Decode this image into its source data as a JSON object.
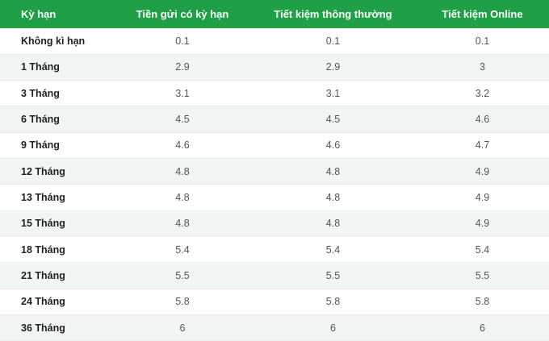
{
  "table": {
    "headers": [
      "Kỳ hạn",
      "Tiền gửi có kỳ hạn",
      "Tiết kiệm thông thường",
      "Tiết kiệm Online"
    ],
    "rows": [
      [
        "Không kì hạn",
        "0.1",
        "0.1",
        "0.1"
      ],
      [
        "1 Tháng",
        "2.9",
        "2.9",
        "3"
      ],
      [
        "3 Tháng",
        "3.1",
        "3.1",
        "3.2"
      ],
      [
        "6 Tháng",
        "4.5",
        "4.5",
        "4.6"
      ],
      [
        "9 Tháng",
        "4.6",
        "4.6",
        "4.7"
      ],
      [
        "12 Tháng",
        "4.8",
        "4.8",
        "4.9"
      ],
      [
        "13 Tháng",
        "4.8",
        "4.8",
        "4.9"
      ],
      [
        "15 Tháng",
        "4.8",
        "4.8",
        "4.9"
      ],
      [
        "18 Tháng",
        "5.4",
        "5.4",
        "5.4"
      ],
      [
        "21 Tháng",
        "5.5",
        "5.5",
        "5.5"
      ],
      [
        "24 Tháng",
        "5.8",
        "5.8",
        "5.8"
      ],
      [
        "36 Tháng",
        "6",
        "6",
        "6"
      ]
    ]
  },
  "colors": {
    "header_bg": "#1fa046",
    "header_text": "#ffffff",
    "stripe_bg": "#f2f6f3"
  }
}
